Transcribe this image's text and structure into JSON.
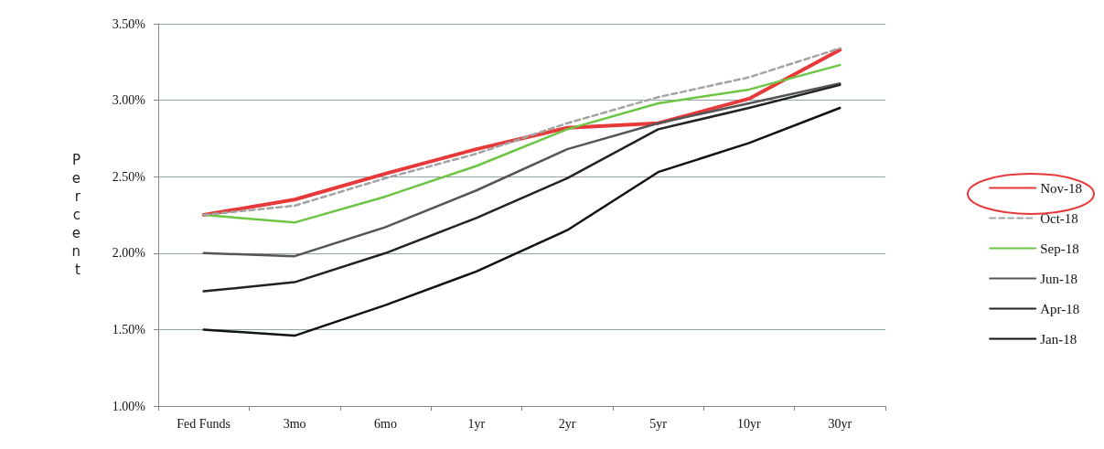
{
  "chart_data": {
    "type": "line",
    "ylabel": "Percent",
    "categories": [
      "Fed Funds",
      "3mo",
      "6mo",
      "1yr",
      "2yr",
      "5yr",
      "10yr",
      "30yr"
    ],
    "series": [
      {
        "name": "Nov-18",
        "color": "#e8393a",
        "values": [
          2.25,
          2.35,
          2.52,
          2.68,
          2.82,
          2.85,
          3.01,
          3.33
        ]
      },
      {
        "name": "Oct-18",
        "color": "#a3a3a3",
        "line_style": "dashed",
        "values": [
          2.25,
          2.31,
          2.49,
          2.65,
          2.85,
          3.02,
          3.15,
          3.34
        ]
      },
      {
        "name": "Sep-18",
        "color": "#6cc644",
        "values": [
          2.25,
          2.2,
          2.37,
          2.57,
          2.81,
          2.98,
          3.07,
          3.23
        ]
      },
      {
        "name": "Jun-18",
        "color": "#555555",
        "values": [
          2.0,
          1.98,
          2.17,
          2.41,
          2.68,
          2.85,
          2.98,
          3.11
        ]
      },
      {
        "name": "Apr-18",
        "color": "#222222",
        "values": [
          1.75,
          1.81,
          2.0,
          2.23,
          2.49,
          2.81,
          2.95,
          3.1
        ]
      },
      {
        "name": "Jan-18",
        "color": "#111111",
        "values": [
          1.5,
          1.46,
          1.66,
          1.88,
          2.15,
          2.53,
          2.72,
          2.95
        ]
      }
    ],
    "ylim": [
      1.0,
      3.5
    ],
    "yticks": [
      {
        "value": 1.0,
        "label": "1.00%"
      },
      {
        "value": 1.5,
        "label": "1.50%"
      },
      {
        "value": 2.0,
        "label": "2.00%"
      },
      {
        "value": 2.5,
        "label": "2.50%"
      },
      {
        "value": 3.0,
        "label": "3.00%"
      },
      {
        "value": 3.5,
        "label": "3.50%"
      }
    ],
    "grid": "y",
    "legend": "right",
    "marker": "none",
    "line_style": "solid"
  }
}
